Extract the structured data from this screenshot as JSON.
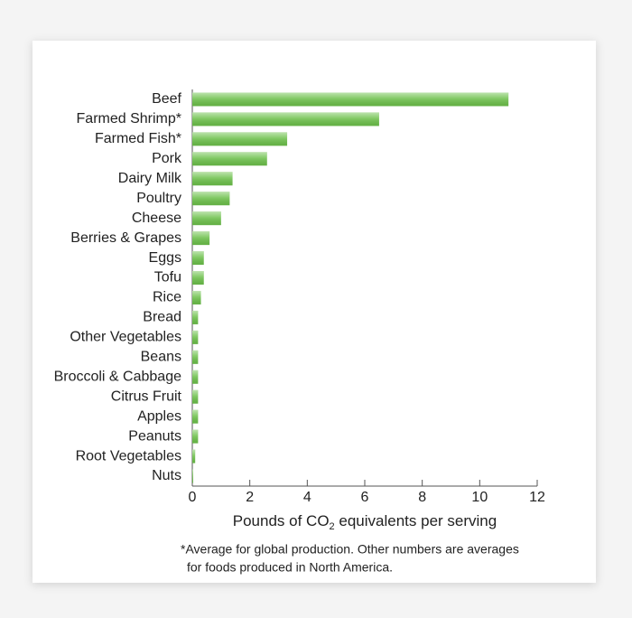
{
  "chart_data": {
    "type": "bar",
    "orientation": "horizontal",
    "categories": [
      "Beef",
      "Farmed Shrimp*",
      "Farmed Fish*",
      "Pork",
      "Dairy Milk",
      "Poultry",
      "Cheese",
      "Berries & Grapes",
      "Eggs",
      "Tofu",
      "Rice",
      "Bread",
      "Other Vegetables",
      "Beans",
      "Broccoli & Cabbage",
      "Citrus Fruit",
      "Apples",
      "Peanuts",
      "Root Vegetables",
      "Nuts"
    ],
    "values": [
      11,
      6.5,
      3.3,
      2.6,
      1.4,
      1.3,
      1.0,
      0.6,
      0.4,
      0.4,
      0.3,
      0.2,
      0.2,
      0.2,
      0.2,
      0.2,
      0.2,
      0.2,
      0.1,
      0.03
    ],
    "color": "#6cc04a",
    "xlim": [
      0,
      12
    ],
    "xticks": [
      0,
      2,
      4,
      6,
      8,
      10,
      12
    ],
    "xlabel": [
      "Pounds of CO",
      "2",
      " equivalents per serving"
    ],
    "footnote": [
      "*Average for global production. Other numbers are averages",
      "for foods produced in North America."
    ]
  }
}
